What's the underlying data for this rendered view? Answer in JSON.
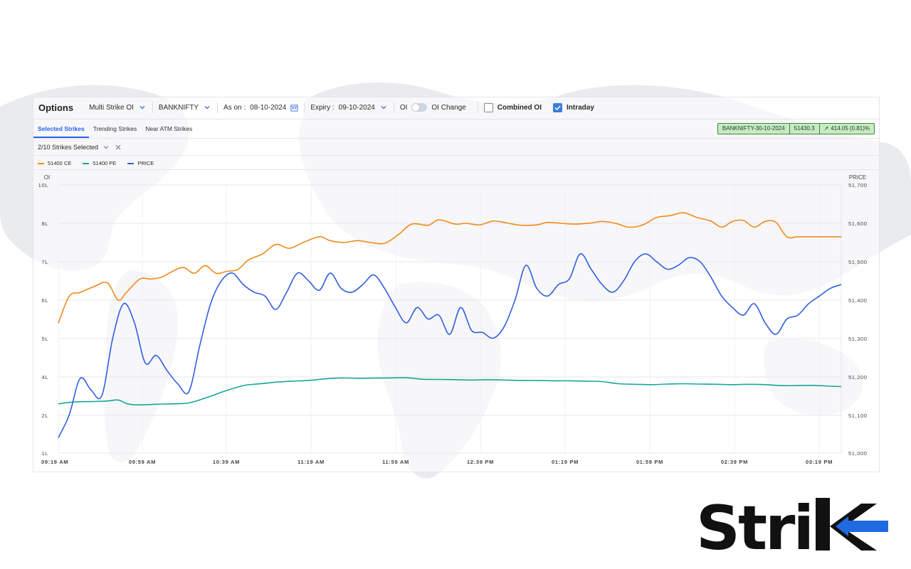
{
  "toolbar": {
    "title": "Options",
    "mode_label": "Multi Strike OI",
    "symbol": "BANKNIFTY",
    "as_on_label": "As on :",
    "as_on_value": "08-10-2024",
    "expiry_label": "Expiry :",
    "expiry_value": "09-10-2024",
    "oi_label": "OI",
    "oi_change_label": "OI Change",
    "combined_oi_label": "Combined OI",
    "intraday_label": "Intraday"
  },
  "tabs": [
    "Selected Strikes",
    "Trending Strikes",
    "Near ATM Strikes"
  ],
  "ticker": {
    "contract": "BANKNIFTY-30-10-2024",
    "price": "51430.3",
    "change": "414.05 (0.81)%"
  },
  "strikes_selected": "2/10 Strikes Selected",
  "legend": [
    {
      "name": "51400 CE",
      "color": "#f28a1e"
    },
    {
      "name": "51400 PE",
      "color": "#17a69a"
    },
    {
      "name": "PRICE",
      "color": "#2f5fe0"
    }
  ],
  "colors": {
    "ce": "#f28a1e",
    "pe": "#17a69a",
    "price": "#2f5fe0",
    "accent": "#2563eb"
  },
  "logo_text": "Strike",
  "chart_data": {
    "type": "line",
    "left_axis_label": "OI",
    "right_axis_label": "PRICE",
    "left_ticks": [
      "10L",
      "8L",
      "7L",
      "6L",
      "5L",
      "4L",
      "2L",
      "1L"
    ],
    "right_ticks": [
      "51,700",
      "51,600",
      "51,500",
      "51,400",
      "51,300",
      "51,200",
      "51,100",
      "51,000"
    ],
    "right_range": [
      51000,
      51700
    ],
    "x_ticks": [
      "09:19 AM",
      "09:59 AM",
      "10:39 AM",
      "11:19 AM",
      "11:59 AM",
      "12:39 PM",
      "01:19 PM",
      "01:59 PM",
      "02:39 PM",
      "03:19 PM"
    ],
    "grid": true,
    "legend_position": "top-left",
    "series": [
      {
        "name": "51400 CE",
        "axis": "left",
        "t": [
          0,
          4,
          8,
          13,
          18,
          22,
          25,
          30,
          34,
          38,
          42,
          46,
          50,
          54,
          58,
          62,
          66,
          70,
          75,
          80,
          85,
          90,
          96,
          100,
          105,
          110,
          115,
          120,
          125,
          130,
          136,
          140,
          146,
          150,
          155,
          160,
          165,
          170,
          176,
          180,
          185,
          190,
          196,
          200,
          205,
          210,
          215,
          220,
          225,
          230,
          235,
          240,
          244,
          248,
          252,
          256,
          260,
          264,
          268,
          272,
          276,
          280,
          284,
          288
        ],
        "values": [
          5.4,
          6.1,
          6.2,
          6.35,
          6.45,
          6.0,
          6.2,
          6.55,
          6.55,
          6.6,
          6.75,
          6.85,
          6.7,
          6.9,
          6.7,
          6.75,
          6.8,
          7.05,
          7.2,
          7.45,
          7.35,
          7.5,
          7.65,
          7.55,
          7.5,
          7.55,
          7.5,
          7.48,
          7.7,
          7.98,
          7.95,
          8.18,
          7.98,
          8.0,
          7.96,
          8.12,
          8.02,
          7.95,
          7.96,
          8.05,
          8.0,
          7.98,
          8.02,
          8.1,
          8.0,
          7.9,
          7.96,
          8.3,
          8.4,
          8.55,
          8.3,
          8.12,
          7.9,
          8.1,
          8.15,
          7.9,
          8.1,
          8.05,
          7.65,
          7.65,
          7.65,
          7.65,
          7.65,
          7.65
        ]
      },
      {
        "name": "51400 PE",
        "axis": "left",
        "t": [
          0,
          6,
          12,
          18,
          22,
          25,
          28,
          32,
          36,
          42,
          48,
          54,
          58,
          62,
          68,
          72,
          76,
          80,
          86,
          92,
          98,
          104,
          110,
          116,
          122,
          128,
          134,
          140,
          146,
          152,
          158,
          164,
          170,
          176,
          182,
          188,
          194,
          200,
          206,
          212,
          218,
          224,
          230,
          236,
          242,
          248,
          254,
          260,
          266,
          272,
          278,
          284,
          288
        ],
        "values": [
          2.6,
          2.7,
          2.72,
          2.75,
          2.8,
          2.62,
          2.55,
          2.55,
          2.58,
          2.6,
          2.65,
          2.9,
          3.1,
          3.3,
          3.55,
          3.62,
          3.67,
          3.73,
          3.78,
          3.82,
          3.9,
          3.95,
          3.93,
          3.94,
          3.95,
          3.96,
          3.88,
          3.87,
          3.86,
          3.84,
          3.86,
          3.84,
          3.82,
          3.82,
          3.8,
          3.8,
          3.78,
          3.76,
          3.65,
          3.62,
          3.6,
          3.63,
          3.65,
          3.63,
          3.62,
          3.6,
          3.62,
          3.6,
          3.55,
          3.55,
          3.56,
          3.52,
          3.5
        ]
      },
      {
        "name": "PRICE",
        "axis": "right",
        "t": [
          0,
          4,
          8,
          12,
          16,
          20,
          24,
          28,
          32,
          36,
          40,
          44,
          48,
          52,
          56,
          60,
          64,
          68,
          72,
          76,
          80,
          84,
          88,
          92,
          96,
          100,
          104,
          108,
          112,
          116,
          120,
          124,
          128,
          132,
          136,
          140,
          144,
          148,
          152,
          156,
          160,
          164,
          168,
          172,
          176,
          180,
          184,
          188,
          192,
          196,
          200,
          204,
          208,
          212,
          216,
          220,
          224,
          228,
          232,
          236,
          240,
          244,
          248,
          252,
          256,
          260,
          264,
          268,
          272,
          276,
          280,
          284,
          288
        ],
        "values": [
          51040,
          51100,
          51195,
          51165,
          51150,
          51300,
          51390,
          51340,
          51235,
          51255,
          51215,
          51180,
          51160,
          51280,
          51390,
          51450,
          51470,
          51440,
          51420,
          51410,
          51375,
          51420,
          51470,
          51450,
          51425,
          51470,
          51430,
          51420,
          51440,
          51465,
          51430,
          51380,
          51340,
          51380,
          51350,
          51360,
          51310,
          51380,
          51320,
          51315,
          51300,
          51330,
          51400,
          51490,
          51430,
          51410,
          51440,
          51455,
          51520,
          51480,
          51440,
          51420,
          51450,
          51500,
          51520,
          51500,
          51480,
          51490,
          51510,
          51500,
          51460,
          51410,
          51380,
          51360,
          51390,
          51340,
          51310,
          51350,
          51360,
          51390,
          51410,
          51430,
          51440
        ]
      }
    ]
  }
}
